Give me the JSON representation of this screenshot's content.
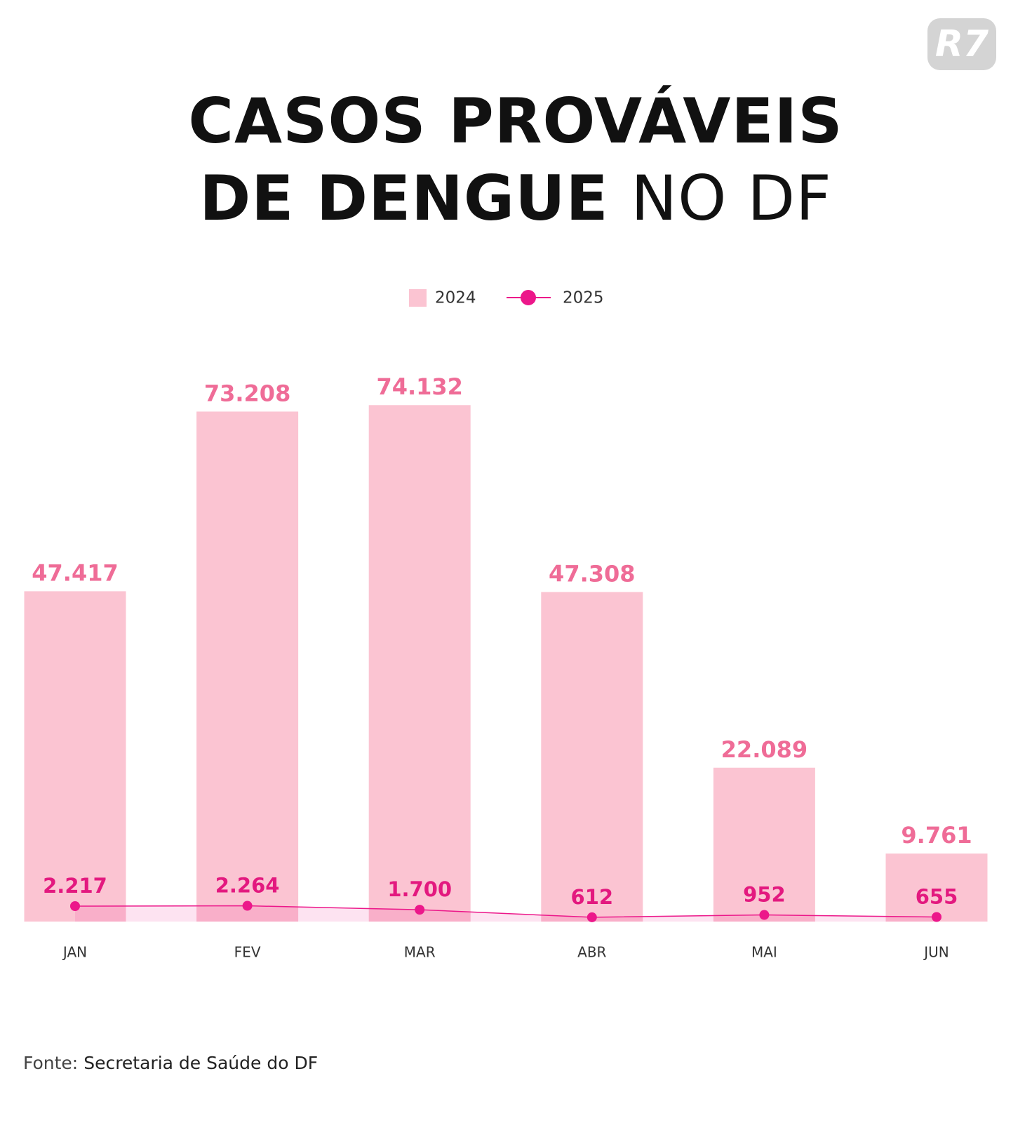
{
  "chart_data": {
    "type": "bar",
    "title": "CASOS PROVÁVEIS DE DENGUE",
    "title_suffix": "NO DF",
    "logo": "R7",
    "categories": [
      "JAN",
      "FEV",
      "MAR",
      "ABR",
      "MAI",
      "JUN"
    ],
    "series": [
      {
        "name": "2024",
        "type": "bar",
        "color": "#fbc4d2",
        "label_color": "#ef6c97",
        "values": [
          47417,
          73208,
          74132,
          47308,
          22089,
          9761
        ],
        "value_labels": [
          "47.417",
          "73.208",
          "74.132",
          "47.308",
          "22.089",
          "9.761"
        ]
      },
      {
        "name": "2025",
        "type": "line",
        "color": "#ec178a",
        "label_color": "#e3197f",
        "values": [
          2217,
          2264,
          1700,
          612,
          952,
          655
        ],
        "value_labels": [
          "2.217",
          "2.264",
          "1.700",
          "612",
          "952",
          "655"
        ]
      }
    ],
    "ylim": [
      0,
      80000
    ],
    "source_label": "Fonte:",
    "source": "Secretaria de Saúde do DF"
  }
}
